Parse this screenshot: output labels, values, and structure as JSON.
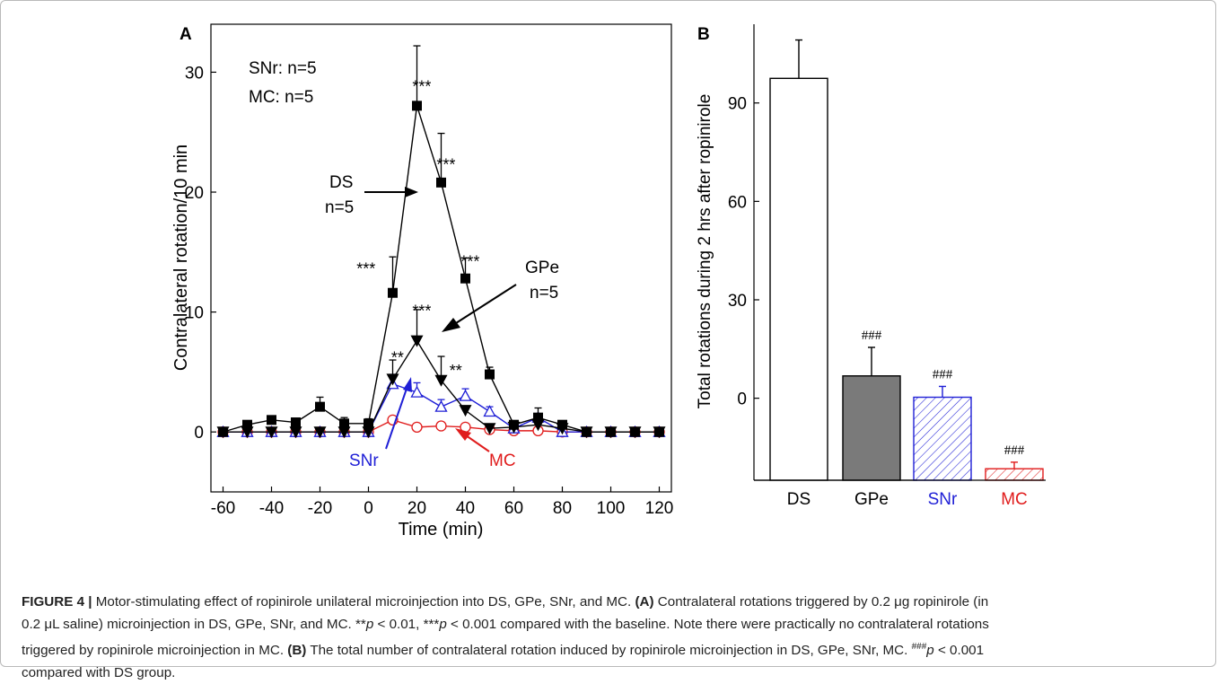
{
  "chart_data": [
    {
      "panel": "A",
      "type": "line",
      "xlabel": "Time (min)",
      "ylabel": "Contralateral rotation/10 min",
      "xlim": [
        -65,
        125
      ],
      "ylim": [
        -5,
        34
      ],
      "xticks": [
        -60,
        -40,
        -20,
        0,
        20,
        40,
        60,
        80,
        100,
        120
      ],
      "yticks": [
        0,
        10,
        20,
        30
      ],
      "x": [
        -60,
        -50,
        -40,
        -30,
        -20,
        -10,
        0,
        10,
        20,
        30,
        40,
        50,
        60,
        70,
        80,
        90,
        100,
        110,
        120
      ],
      "series": [
        {
          "key": "DS",
          "marker": "filled-square",
          "color": "#000000",
          "values": [
            0,
            0.6,
            1.0,
            0.8,
            2.1,
            0.7,
            0.7,
            11.6,
            27.2,
            20.8,
            12.8,
            4.8,
            0.6,
            1.2,
            0.6,
            0,
            0,
            0,
            0
          ],
          "errors": [
            0,
            0,
            0,
            0,
            0.8,
            0.5,
            0.4,
            3.0,
            5.0,
            4.1,
            1.7,
            0.6,
            0,
            0.8,
            0,
            0,
            0,
            0,
            0
          ]
        },
        {
          "key": "GPe",
          "marker": "filled-triangle-down",
          "color": "#000000",
          "values": [
            0,
            0,
            0,
            0,
            0,
            0,
            0,
            4.4,
            7.6,
            4.3,
            1.8,
            0.3,
            0.4,
            0.6,
            0.3,
            0,
            0,
            0,
            0
          ],
          "errors": [
            0,
            0,
            0,
            0,
            0,
            0,
            0,
            1.6,
            2.6,
            2.0,
            0,
            0,
            0,
            0,
            0,
            0,
            0,
            0,
            0
          ]
        },
        {
          "key": "SNr",
          "marker": "open-triangle-up",
          "color": "#1f1fd6",
          "values": [
            0,
            0,
            0,
            0,
            0,
            0,
            0,
            4.0,
            3.3,
            2.1,
            3.0,
            1.7,
            0.3,
            1.2,
            0,
            0,
            0,
            0,
            0
          ],
          "errors": [
            0,
            0,
            0,
            0,
            0,
            0,
            0,
            0.8,
            0.8,
            0.6,
            0.6,
            0.4,
            0,
            0,
            0,
            0,
            0,
            0,
            0
          ]
        },
        {
          "key": "MC",
          "marker": "open-circle",
          "color": "#e01c1c",
          "values": [
            0,
            0,
            0,
            0,
            0,
            0,
            0,
            1.0,
            0.4,
            0.5,
            0.4,
            0.2,
            0.1,
            0.1,
            0,
            0,
            0,
            0,
            0
          ],
          "errors": [
            0,
            0,
            0,
            0,
            0,
            0,
            0,
            0.2,
            0.2,
            0.2,
            0.2,
            0,
            0,
            0,
            0,
            0,
            0,
            0,
            0
          ]
        }
      ],
      "annotations": [
        {
          "text": "***",
          "x": 22,
          "y": 28.8
        },
        {
          "text": "***",
          "x": 32,
          "y": 22.3
        },
        {
          "text": "***",
          "x": 42,
          "y": 14.2
        },
        {
          "text": "***",
          "x": -1,
          "y": 13.6
        },
        {
          "text": "***",
          "x": 22,
          "y": 10.1
        },
        {
          "text": "**",
          "x": 12,
          "y": 6.2
        },
        {
          "text": "**",
          "x": 36,
          "y": 5.1
        }
      ],
      "legend_text": [
        "SNr: n=5",
        "MC: n=5"
      ],
      "series_labels": [
        {
          "lines": [
            "DS",
            "n=5"
          ],
          "series": "DS",
          "color": "#000000"
        },
        {
          "lines": [
            "GPe",
            "n=5"
          ],
          "series": "GPe",
          "color": "#000000"
        },
        {
          "lines": [
            "SNr"
          ],
          "series": "SNr",
          "color": "#1f1fd6"
        },
        {
          "lines": [
            "MC"
          ],
          "series": "MC",
          "color": "#e01c1c"
        }
      ]
    },
    {
      "panel": "B",
      "type": "bar",
      "categories": [
        "DS",
        "GPe",
        "SNr",
        "MC"
      ],
      "category_colors": [
        "#000000",
        "#000000",
        "#1f1fd6",
        "#e01c1c"
      ],
      "values": [
        97.5,
        6.8,
        0.3,
        -21.5
      ],
      "errors": [
        11.7,
        8.7,
        3.3,
        2.0
      ],
      "bar_fill": [
        "open",
        "solid-gray",
        "hatched-blue",
        "hatched-red"
      ],
      "fill_colors": [
        "#ffffff",
        "#7a7a7a",
        "#1f1fd6",
        "#e01c1c"
      ],
      "ylabel": "Total rotations during 2 hrs after ropinirole",
      "ylim": [
        -25,
        114
      ],
      "yticks": [
        0,
        30,
        60,
        90
      ],
      "bar_annotations": [
        "",
        "###",
        "###",
        "###"
      ]
    }
  ],
  "panel_labels": [
    "A",
    "B"
  ],
  "caption": {
    "figure_label": "FIGURE 4 |",
    "lines": [
      [
        {
          "t": "Motor-stimulating effect of ropinirole unilateral microinjection into DS, GPe, SNr, and MC. "
        },
        {
          "t": "(A)",
          "b": true
        },
        {
          "t": " Contralateral rotations triggered by 0.2 μg ropinirole (in"
        }
      ],
      [
        {
          "t": "0.2 μL saline) microinjection in DS, GPe, SNr, and MC. **"
        },
        {
          "t": "p",
          "i": true
        },
        {
          "t": " < 0.01, ***"
        },
        {
          "t": "p",
          "i": true
        },
        {
          "t": " < 0.001 compared with the baseline. Note there were practically no contralateral rotations"
        }
      ],
      [
        {
          "t": "triggered by ropinirole microinjection in MC. "
        },
        {
          "t": "(B)",
          "b": true
        },
        {
          "t": " The total number of contralateral rotation induced by ropinirole microinjection in DS, GPe, SNr, MC. "
        },
        {
          "t": "###",
          "sup": true
        },
        {
          "t": "p",
          "i": true
        },
        {
          "t": " < 0.001"
        }
      ],
      [
        {
          "t": "compared with DS group."
        }
      ]
    ]
  }
}
